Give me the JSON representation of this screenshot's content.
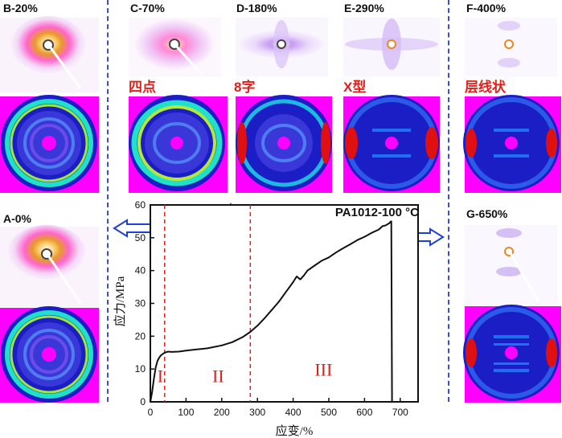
{
  "panels": [
    {
      "id": "B",
      "label": "B-20%"
    },
    {
      "id": "C",
      "label": "C-70%"
    },
    {
      "id": "D",
      "label": "D-180%"
    },
    {
      "id": "E",
      "label": "E-290%"
    },
    {
      "id": "F",
      "label": "F-400%"
    },
    {
      "id": "A",
      "label": "A-0%"
    },
    {
      "id": "G",
      "label": "G-650%"
    }
  ],
  "patterns": {
    "C": "四点",
    "D": "8字",
    "E": "X型",
    "F": "层线状"
  },
  "colors": {
    "divider": "#3b4fd0",
    "arrow": "#1f3fd6",
    "guide": "#e0201a",
    "region": "#e0201a",
    "waxs_background": "#ff00ff"
  },
  "chart_data": {
    "type": "line",
    "title": "PA1012-100 °C",
    "xlabel": "应变/%",
    "ylabel": "应力/MPa",
    "xlim": [
      0,
      750
    ],
    "ylim": [
      0,
      60
    ],
    "xticks": [
      0,
      100,
      200,
      300,
      400,
      500,
      600,
      700
    ],
    "yticks": [
      0,
      10,
      20,
      30,
      40,
      50,
      60
    ],
    "guide_lines_x": [
      40,
      280
    ],
    "regions": [
      {
        "label": "I",
        "x": 28,
        "y": 6
      },
      {
        "label": "II",
        "x": 190,
        "y": 6
      },
      {
        "label": "III",
        "x": 485,
        "y": 8
      }
    ],
    "series": [
      {
        "name": "PA1012-100 °C",
        "x": [
          0,
          5,
          10,
          15,
          20,
          25,
          30,
          35,
          40,
          50,
          60,
          80,
          100,
          130,
          160,
          200,
          230,
          260,
          280,
          300,
          320,
          340,
          360,
          380,
          400,
          410,
          420,
          430,
          440,
          460,
          480,
          500,
          520,
          540,
          560,
          580,
          600,
          620,
          640,
          650,
          660,
          670,
          672,
          675,
          676,
          677
        ],
        "y": [
          0,
          3,
          7,
          10.5,
          12.5,
          13.5,
          14.2,
          14.6,
          15,
          15.3,
          15.2,
          15.3,
          15.6,
          16,
          16.3,
          17.2,
          18.2,
          19.8,
          21.3,
          23.2,
          25.5,
          28,
          30.5,
          33.5,
          36.5,
          38.2,
          37.3,
          38.5,
          40,
          41.5,
          43,
          44,
          45.5,
          46.8,
          48,
          49.3,
          50.3,
          51.5,
          52.5,
          53.5,
          53.8,
          54.5,
          54.8,
          55,
          30,
          0
        ]
      }
    ],
    "annotations": [
      "PA1012-100 °C"
    ]
  }
}
